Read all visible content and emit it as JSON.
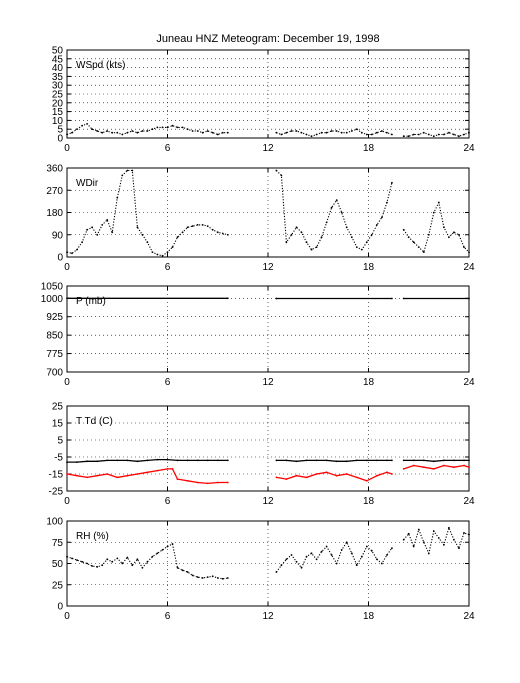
{
  "title": "Juneau HNZ Meteogram:  December 19, 1998",
  "chart_data": [
    {
      "id": "wspd",
      "type": "scatter",
      "label": "WSpd (kts)",
      "xlim": [
        0,
        24
      ],
      "ylim": [
        0,
        50
      ],
      "xticks": [
        0,
        6,
        12,
        18,
        24
      ],
      "yticks": [
        0,
        5,
        10,
        15,
        20,
        25,
        30,
        35,
        40,
        45,
        50
      ],
      "grid": true,
      "series": [
        {
          "color": "#000000",
          "segments": [
            {
              "x": [
                0.0,
                0.3,
                0.6,
                0.9,
                1.2,
                1.5,
                1.8,
                2.1,
                2.4,
                2.7,
                3.0,
                3.3,
                3.6,
                3.9,
                4.2,
                4.5,
                4.8,
                5.1,
                5.4,
                5.7,
                6.0,
                6.3,
                6.6,
                6.9,
                7.2,
                7.5,
                7.8,
                8.1,
                8.4,
                8.7,
                9.0,
                9.3,
                9.6
              ],
              "y": [
                2,
                3,
                5,
                7,
                8,
                5,
                4,
                3,
                4,
                3,
                3,
                2,
                3,
                4,
                3,
                4,
                4,
                5,
                6,
                6,
                6,
                7,
                6,
                6,
                5,
                4,
                4,
                3,
                4,
                3,
                2,
                3,
                3
              ]
            },
            {
              "x": [
                12.5,
                12.8,
                13.1,
                13.4,
                13.7,
                14.0,
                14.3,
                14.6,
                14.9,
                15.2,
                15.5,
                15.8,
                16.1,
                16.4,
                16.7,
                17.0,
                17.3,
                17.6,
                17.9,
                18.2,
                18.5,
                18.8,
                19.1,
                19.4
              ],
              "y": [
                3,
                2,
                3,
                4,
                4,
                3,
                2,
                1,
                2,
                3,
                3,
                4,
                4,
                3,
                3,
                4,
                5,
                3,
                2,
                2,
                3,
                4,
                3,
                2
              ]
            },
            {
              "x": [
                20.1,
                20.4,
                20.7,
                21.0,
                21.3,
                21.6,
                21.9,
                22.2,
                22.5,
                22.8,
                23.1,
                23.4,
                23.7,
                24.0
              ],
              "y": [
                1,
                1,
                2,
                2,
                3,
                2,
                1,
                2,
                2,
                3,
                2,
                1,
                2,
                3
              ]
            }
          ]
        }
      ]
    },
    {
      "id": "wdir",
      "type": "scatter",
      "label": "WDir",
      "xlim": [
        0,
        24
      ],
      "ylim": [
        0,
        360
      ],
      "xticks": [
        0,
        6,
        12,
        18,
        24
      ],
      "yticks": [
        0,
        90,
        180,
        270,
        360
      ],
      "grid": true,
      "series": [
        {
          "color": "#000000",
          "segments": [
            {
              "x": [
                0.0,
                0.3,
                0.6,
                0.9,
                1.2,
                1.5,
                1.8,
                2.1,
                2.4,
                2.7,
                3.0,
                3.3,
                3.6,
                3.9,
                4.2,
                4.5,
                4.8,
                5.1,
                5.4,
                5.7,
                6.0,
                6.3,
                6.6,
                6.9,
                7.2,
                7.5,
                7.8,
                8.1,
                8.4,
                8.7,
                9.0,
                9.3,
                9.6
              ],
              "y": [
                20,
                15,
                30,
                60,
                110,
                120,
                90,
                130,
                150,
                100,
                240,
                330,
                350,
                350,
                120,
                90,
                60,
                20,
                10,
                5,
                20,
                40,
                80,
                100,
                120,
                125,
                130,
                130,
                125,
                110,
                100,
                95,
                90
              ]
            },
            {
              "x": [
                12.5,
                12.8,
                13.1,
                13.4,
                13.7,
                14.0,
                14.3,
                14.6,
                14.9,
                15.2,
                15.5,
                15.8,
                16.1,
                16.4,
                16.7,
                17.0,
                17.3,
                17.6,
                17.9,
                18.2,
                18.5,
                18.8,
                19.1,
                19.4
              ],
              "y": [
                350,
                330,
                60,
                90,
                120,
                100,
                60,
                30,
                40,
                80,
                140,
                200,
                230,
                180,
                120,
                80,
                40,
                30,
                60,
                90,
                130,
                160,
                220,
                300
              ]
            },
            {
              "x": [
                20.1,
                20.4,
                20.7,
                21.0,
                21.3,
                21.6,
                21.9,
                22.2,
                22.5,
                22.8,
                23.1,
                23.4,
                23.7,
                24.0
              ],
              "y": [
                110,
                80,
                60,
                40,
                20,
                90,
                180,
                220,
                120,
                80,
                100,
                90,
                40,
                20
              ]
            }
          ]
        }
      ]
    },
    {
      "id": "pres",
      "type": "line",
      "label": "P (mb)",
      "xlim": [
        0,
        24
      ],
      "ylim": [
        700,
        1050
      ],
      "xticks": [
        0,
        6,
        12,
        18,
        24
      ],
      "yticks": [
        700,
        775,
        850,
        925,
        1000,
        1050
      ],
      "grid": true,
      "series": [
        {
          "color": "#000000",
          "segments": [
            {
              "x": [
                0.0,
                9.6
              ],
              "y": [
                1000,
                1000
              ]
            },
            {
              "x": [
                12.5,
                19.4
              ],
              "y": [
                999,
                999
              ]
            },
            {
              "x": [
                20.1,
                24.0
              ],
              "y": [
                999,
                999
              ]
            }
          ]
        }
      ]
    },
    {
      "id": "temp",
      "type": "line",
      "label": "T Td (C)",
      "xlim": [
        0,
        24
      ],
      "ylim": [
        -25,
        25
      ],
      "xticks": [
        0,
        6,
        12,
        18,
        24
      ],
      "yticks": [
        -25,
        -15,
        -5,
        5,
        15,
        25
      ],
      "grid": true,
      "series": [
        {
          "color": "#000000",
          "segments": [
            {
              "x": [
                0.0,
                0.6,
                1.2,
                1.8,
                2.4,
                3.0,
                3.6,
                4.2,
                4.8,
                5.4,
                6.0,
                6.6,
                7.2,
                7.8,
                8.4,
                9.0,
                9.6
              ],
              "y": [
                -8,
                -8,
                -7.5,
                -7.5,
                -7,
                -7,
                -7,
                -7.5,
                -7,
                -6.5,
                -6.5,
                -7,
                -7,
                -7,
                -7,
                -7,
                -7
              ]
            },
            {
              "x": [
                12.5,
                13.1,
                13.7,
                14.3,
                14.9,
                15.5,
                16.1,
                16.7,
                17.3,
                17.9,
                18.5,
                19.1,
                19.4
              ],
              "y": [
                -7,
                -7,
                -7.5,
                -7,
                -7,
                -7,
                -7.5,
                -7.5,
                -7,
                -7,
                -7,
                -7,
                -7
              ]
            },
            {
              "x": [
                20.1,
                20.7,
                21.3,
                21.9,
                22.5,
                23.1,
                23.7,
                24.0
              ],
              "y": [
                -7,
                -7,
                -7,
                -7.5,
                -7,
                -7,
                -7,
                -7
              ]
            }
          ]
        },
        {
          "color": "#ff0000",
          "segments": [
            {
              "x": [
                0.0,
                0.6,
                1.2,
                1.8,
                2.4,
                3.0,
                3.6,
                4.2,
                4.8,
                5.4,
                6.0,
                6.3,
                6.6,
                7.2,
                7.8,
                8.4,
                9.0,
                9.6
              ],
              "y": [
                -15,
                -16,
                -17,
                -16,
                -15,
                -17,
                -16,
                -15,
                -14,
                -13,
                -12,
                -12,
                -18,
                -19,
                -20,
                -20.5,
                -20,
                -20
              ]
            },
            {
              "x": [
                12.5,
                13.1,
                13.7,
                14.3,
                14.9,
                15.5,
                16.1,
                16.7,
                17.3,
                17.9,
                18.5,
                19.1,
                19.4
              ],
              "y": [
                -17,
                -18,
                -16,
                -17,
                -15,
                -14,
                -16,
                -15,
                -17,
                -19,
                -16,
                -14,
                -15
              ]
            },
            {
              "x": [
                20.1,
                20.7,
                21.3,
                21.9,
                22.5,
                23.1,
                23.7,
                24.0
              ],
              "y": [
                -12,
                -10,
                -11,
                -12,
                -10,
                -11,
                -10,
                -11
              ]
            }
          ]
        }
      ]
    },
    {
      "id": "rh",
      "type": "scatter",
      "label": "RH (%)",
      "xlim": [
        0,
        24
      ],
      "ylim": [
        0,
        100
      ],
      "xticks": [
        0,
        6,
        12,
        18,
        24
      ],
      "yticks": [
        0,
        25,
        50,
        75,
        100
      ],
      "grid": true,
      "series": [
        {
          "color": "#000000",
          "segments": [
            {
              "x": [
                0.0,
                0.3,
                0.6,
                0.9,
                1.2,
                1.5,
                1.8,
                2.1,
                2.4,
                2.7,
                3.0,
                3.3,
                3.6,
                3.9,
                4.2,
                4.5,
                4.8,
                5.1,
                5.4,
                5.7,
                6.0,
                6.3,
                6.6,
                6.9,
                7.2,
                7.5,
                7.8,
                8.1,
                8.4,
                8.7,
                9.0,
                9.3,
                9.6
              ],
              "y": [
                58,
                56,
                54,
                52,
                50,
                47,
                46,
                48,
                55,
                52,
                56,
                50,
                57,
                48,
                55,
                45,
                52,
                58,
                62,
                66,
                70,
                73,
                45,
                42,
                40,
                36,
                34,
                33,
                34,
                35,
                33,
                32,
                33
              ]
            },
            {
              "x": [
                12.5,
                12.8,
                13.1,
                13.4,
                13.7,
                14.0,
                14.3,
                14.6,
                14.9,
                15.2,
                15.5,
                15.8,
                16.1,
                16.4,
                16.7,
                17.0,
                17.3,
                17.6,
                17.9,
                18.2,
                18.5,
                18.8,
                19.1,
                19.4
              ],
              "y": [
                40,
                48,
                55,
                60,
                52,
                45,
                58,
                62,
                55,
                64,
                70,
                60,
                50,
                66,
                75,
                62,
                48,
                58,
                70,
                65,
                55,
                50,
                60,
                68
              ]
            },
            {
              "x": [
                20.1,
                20.4,
                20.7,
                21.0,
                21.3,
                21.6,
                21.9,
                22.2,
                22.5,
                22.8,
                23.1,
                23.4,
                23.7,
                24.0
              ],
              "y": [
                78,
                85,
                70,
                90,
                75,
                62,
                88,
                80,
                72,
                92,
                78,
                68,
                86,
                84
              ]
            }
          ]
        }
      ]
    }
  ]
}
